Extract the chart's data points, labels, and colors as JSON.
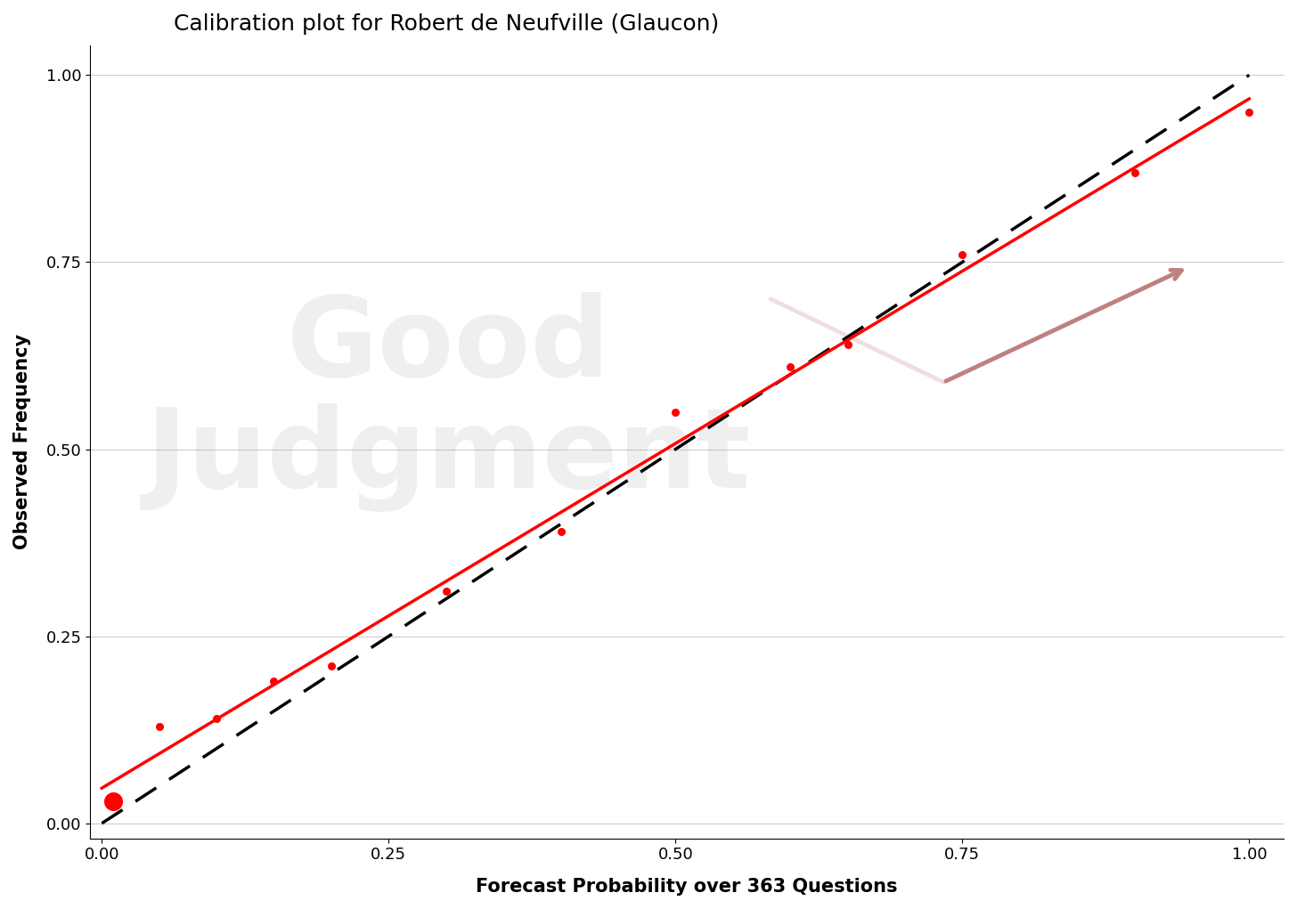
{
  "title": "Calibration plot for Robert de Neufville (Glaucon)",
  "xlabel": "Forecast Probability over 363 Questions",
  "ylabel": "Observed Frequency",
  "points_x": [
    0.01,
    0.05,
    0.1,
    0.15,
    0.2,
    0.3,
    0.4,
    0.5,
    0.6,
    0.65,
    0.75,
    0.9,
    1.0
  ],
  "points_y": [
    0.03,
    0.13,
    0.14,
    0.19,
    0.21,
    0.31,
    0.39,
    0.55,
    0.61,
    0.64,
    0.76,
    0.87,
    0.95
  ],
  "large_point_idx": 0,
  "large_point_size": 200,
  "small_point_size": 30,
  "line_color": "#FF0000",
  "point_color": "#FF0000",
  "diagonal_color": "#000000",
  "background_color": "#FFFFFF",
  "grid_color": "#CCCCCC",
  "title_fontsize": 18,
  "axis_label_fontsize": 15,
  "tick_fontsize": 13,
  "yticks": [
    0.0,
    0.25,
    0.5,
    0.75,
    1.0
  ],
  "xticks": [
    0.0,
    0.25,
    0.5,
    0.75,
    1.0
  ],
  "watermark_alpha": 0.18,
  "logo_alpha": 0.25
}
